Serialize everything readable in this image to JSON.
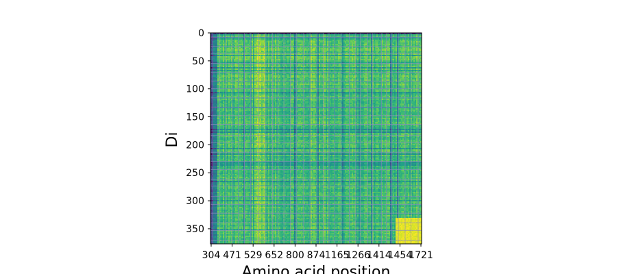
{
  "chart_data": {
    "type": "heatmap",
    "title": "",
    "xlabel": "Amino acid position",
    "ylabel": "Di",
    "x_tick_labels": [
      "304",
      "471",
      "529",
      "652",
      "800",
      "874",
      "1165",
      "1266",
      "1414",
      "1454",
      "1721"
    ],
    "y_ticks": [
      0,
      50,
      100,
      150,
      200,
      250,
      300,
      350
    ],
    "y_tick_labels": [
      "0",
      "50",
      "100",
      "150",
      "200",
      "250",
      "300",
      "350"
    ],
    "ylim": [
      377,
      0
    ],
    "n_rows": 377,
    "colormap": "viridis",
    "grid": true,
    "grid_color": "#8c8cc0",
    "grid_x_ticks": 11,
    "grid_y_ticks": 8,
    "region_notes": {
      "bright_block": "bottom-right corner (rows ~330-377, last ~18% of columns) is bright yellow",
      "first_row": "row 0 is dark purple/blue across the width",
      "left_edge": "leftmost columns are dark blue/teal"
    }
  }
}
